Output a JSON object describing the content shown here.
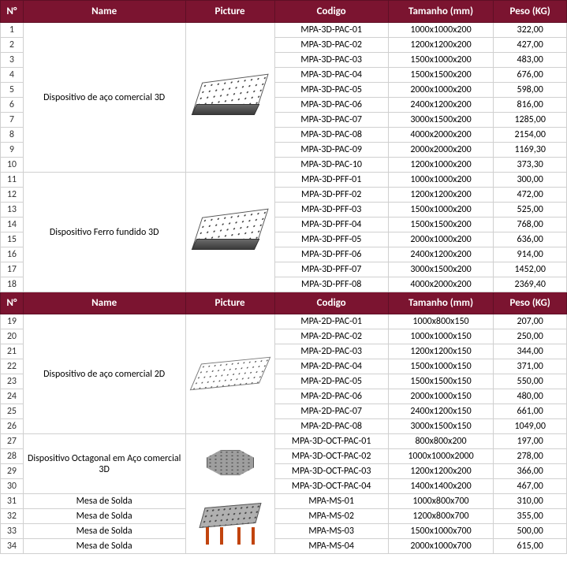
{
  "headers": {
    "num": "N°",
    "name": "Name",
    "picture": "Picture",
    "codigo": "Codigo",
    "tamanho": "Tamanho (mm)",
    "peso": "Peso (KG)"
  },
  "section1": {
    "groups": [
      {
        "name": "Dispositivo de aço comercial 3D",
        "pic": "fixture-3d",
        "rows": [
          {
            "n": "1",
            "cod": "MPA-3D-PAC-01",
            "tam": "1000x1000x200",
            "pes": "322,00"
          },
          {
            "n": "2",
            "cod": "MPA-3D-PAC-02",
            "tam": "1200x1200x200",
            "pes": "427,00"
          },
          {
            "n": "3",
            "cod": "MPA-3D-PAC-03",
            "tam": "1500x1000x200",
            "pes": "483,00"
          },
          {
            "n": "4",
            "cod": "MPA-3D-PAC-04",
            "tam": "1500x1500x200",
            "pes": "676,00"
          },
          {
            "n": "5",
            "cod": "MPA-3D-PAC-05",
            "tam": "2000x1000x200",
            "pes": "598,00"
          },
          {
            "n": "6",
            "cod": "MPA-3D-PAC-06",
            "tam": "2400x1200x200",
            "pes": "816,00"
          },
          {
            "n": "7",
            "cod": "MPA-3D-PAC-07",
            "tam": "3000x1500x200",
            "pes": "1285,00"
          },
          {
            "n": "8",
            "cod": "MPA-3D-PAC-08",
            "tam": "4000x2000x200",
            "pes": "2154,00"
          },
          {
            "n": "9",
            "cod": "MPA-3D-PAC-09",
            "tam": "2000x2000x200",
            "pes": "1169,30"
          },
          {
            "n": "10",
            "cod": "MPA-3D-PAC-10",
            "tam": "1200x1000x200",
            "pes": "373,30"
          }
        ]
      },
      {
        "name": "Dispositivo Ferro fundido 3D",
        "pic": "fixture-3d",
        "rows": [
          {
            "n": "11",
            "cod": "MPA-3D-PFF-01",
            "tam": "1000x1000x200",
            "pes": "300,00"
          },
          {
            "n": "12",
            "cod": "MPA-3D-PFF-02",
            "tam": "1200x1200x200",
            "pes": "472,00"
          },
          {
            "n": "13",
            "cod": "MPA-3D-PFF-03",
            "tam": "1500x1000x200",
            "pes": "525,00"
          },
          {
            "n": "14",
            "cod": "MPA-3D-PFF-04",
            "tam": "1500x1500x200",
            "pes": "768,00"
          },
          {
            "n": "15",
            "cod": "MPA-3D-PFF-05",
            "tam": "2000x1000x200",
            "pes": "636,00"
          },
          {
            "n": "16",
            "cod": "MPA-3D-PFF-06",
            "tam": "2400x1200x200",
            "pes": "914,00"
          },
          {
            "n": "17",
            "cod": "MPA-3D-PFF-07",
            "tam": "3000x1500x200",
            "pes": "1452,00"
          },
          {
            "n": "18",
            "cod": "MPA-3D-PFF-08",
            "tam": "4000x2000x200",
            "pes": "2369,40"
          }
        ]
      }
    ]
  },
  "section2": {
    "groups": [
      {
        "name": "Dispositivo de aço comercial 2D",
        "pic": "fixture-2d",
        "rows": [
          {
            "n": "19",
            "cod": "MPA-2D-PAC-01",
            "tam": "1000x800x150",
            "pes": "207,00"
          },
          {
            "n": "20",
            "cod": "MPA-2D-PAC-02",
            "tam": "1000x1000x150",
            "pes": "250,00"
          },
          {
            "n": "21",
            "cod": "MPA-2D-PAC-03",
            "tam": "1200x1200x150",
            "pes": "344,00"
          },
          {
            "n": "22",
            "cod": "MPA-2D-PAC-04",
            "tam": "1500x1000x150",
            "pes": "371,00"
          },
          {
            "n": "23",
            "cod": "MPA-2D-PAC-05",
            "tam": "1500x1500x150",
            "pes": "550,00"
          },
          {
            "n": "24",
            "cod": "MPA-2D-PAC-06",
            "tam": "2000x1000x150",
            "pes": "480,00"
          },
          {
            "n": "25",
            "cod": "MPA-2D-PAC-07",
            "tam": "2400x1200x150",
            "pes": "661,00"
          },
          {
            "n": "26",
            "cod": "MPA-2D-PAC-08",
            "tam": "3000x1500x150",
            "pes": "1049,00"
          }
        ]
      },
      {
        "name": "Dispositivo Octagonal em Aço comercial 3D",
        "pic": "fixture-oct",
        "rows": [
          {
            "n": "27",
            "cod": "MPA-3D-OCT-PAC-01",
            "tam": "800x800x200",
            "pes": "197,00"
          },
          {
            "n": "28",
            "cod": "MPA-3D-OCT-PAC-02",
            "tam": "1000x1000x2000",
            "pes": "278,00"
          },
          {
            "n": "29",
            "cod": "MPA-3D-OCT-PAC-03",
            "tam": "1200x1200x200",
            "pes": "366,00"
          },
          {
            "n": "30",
            "cod": "MPA-3D-OCT-PAC-04",
            "tam": "1400x1400x200",
            "pes": "467,00"
          }
        ]
      },
      {
        "name": "Mesa de Solda",
        "pic": "weld-table",
        "repeatName": true,
        "rows": [
          {
            "n": "31",
            "cod": "MPA-MS-01",
            "tam": "1000x800x700",
            "pes": "310,00"
          },
          {
            "n": "32",
            "cod": "MPA-MS-02",
            "tam": "1200x800x700",
            "pes": "355,00"
          },
          {
            "n": "33",
            "cod": "MPA-MS-03",
            "tam": "1500x1000x700",
            "pes": "500,00"
          },
          {
            "n": "34",
            "cod": "MPA-MS-04",
            "tam": "2000x1000x700",
            "pes": "615,00"
          }
        ]
      }
    ]
  }
}
